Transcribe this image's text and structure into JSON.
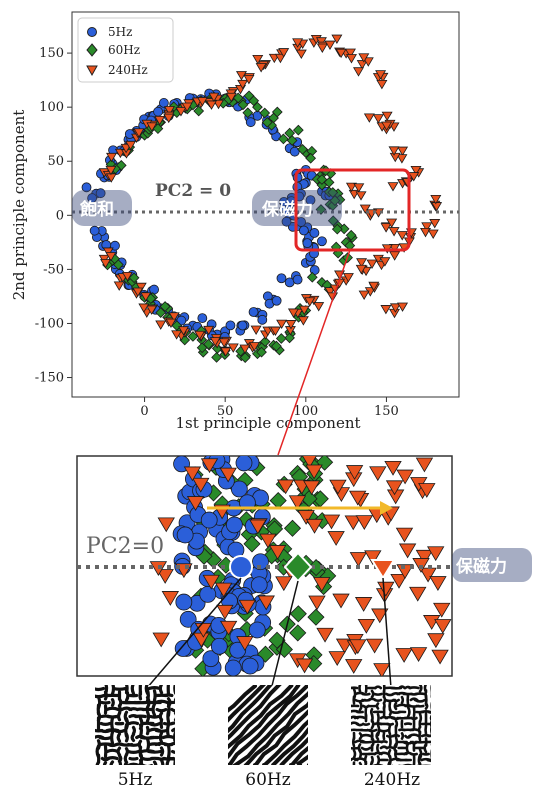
{
  "chart_data": {
    "type": "scatter",
    "xlabel": "1st principle component",
    "ylabel": "2nd principle component",
    "xlim": [
      -45,
      195
    ],
    "ylim": [
      -168,
      188
    ],
    "xticks": [
      0,
      50,
      100,
      150
    ],
    "yticks": [
      -150,
      -100,
      -50,
      0,
      50,
      100,
      150
    ],
    "legend_position": "top-left",
    "series": [
      {
        "name": "5Hz",
        "color": "#2b5fd9",
        "marker": "circle",
        "x": [
          -30,
          -25,
          -20,
          -15,
          -10,
          -5,
          0,
          5,
          10,
          20,
          30,
          40,
          50,
          60,
          70,
          80,
          90,
          100,
          110,
          -25,
          -20,
          -15,
          -10,
          -5,
          0,
          10,
          20,
          30,
          40,
          50,
          60,
          70,
          80,
          90,
          100,
          110,
          90,
          95,
          100,
          105,
          92,
          97,
          102
        ],
        "y": [
          20,
          35,
          48,
          60,
          70,
          78,
          86,
          92,
          98,
          104,
          108,
          110,
          108,
          102,
          92,
          78,
          62,
          42,
          22,
          -20,
          -34,
          -46,
          -58,
          -67,
          -75,
          -86,
          -95,
          -102,
          -106,
          -108,
          -102,
          -90,
          -78,
          -62,
          -44,
          -24,
          10,
          -10,
          30,
          -30,
          0,
          20,
          -20
        ]
      },
      {
        "name": "60Hz",
        "color": "#2a8a2a",
        "marker": "diamond",
        "x": [
          -20,
          -10,
          0,
          10,
          20,
          30,
          40,
          50,
          60,
          70,
          80,
          90,
          100,
          110,
          120,
          -20,
          -10,
          0,
          10,
          20,
          30,
          40,
          50,
          60,
          70,
          80,
          90,
          100,
          110,
          120,
          115,
          120,
          110,
          125
        ],
        "y": [
          42,
          60,
          74,
          86,
          95,
          102,
          106,
          108,
          106,
          100,
          90,
          76,
          58,
          38,
          20,
          -42,
          -60,
          -76,
          -90,
          -102,
          -112,
          -120,
          -125,
          -130,
          -128,
          -120,
          -108,
          -88,
          -62,
          -35,
          10,
          -10,
          28,
          -25
        ]
      },
      {
        "name": "240Hz",
        "color": "#e8531e",
        "marker": "triangle-down",
        "x": [
          -25,
          -15,
          -5,
          5,
          15,
          25,
          35,
          45,
          55,
          65,
          75,
          85,
          95,
          105,
          115,
          125,
          135,
          145,
          -25,
          -15,
          -5,
          5,
          15,
          25,
          35,
          45,
          55,
          65,
          75,
          85,
          95,
          105,
          115,
          125,
          135,
          145,
          155,
          165,
          175,
          150,
          160,
          170,
          140,
          180,
          130,
          140,
          150,
          160,
          145,
          155
        ],
        "y": [
          40,
          58,
          72,
          84,
          94,
          100,
          104,
          108,
          115,
          128,
          140,
          150,
          155,
          160,
          158,
          150,
          140,
          128,
          -40,
          -58,
          -72,
          -86,
          -98,
          -108,
          -112,
          -118,
          -122,
          -118,
          -110,
          -100,
          -90,
          -78,
          -70,
          -60,
          -50,
          -40,
          -30,
          -20,
          -10,
          80,
          60,
          40,
          -70,
          10,
          20,
          0,
          -10,
          30,
          90,
          -90
        ]
      }
    ]
  },
  "annotations": {
    "pc2_label": "PC2 = 0",
    "left_label": "飽和",
    "right_label": "保磁力",
    "zoom_pc2_label": "PC2=0",
    "zoom_right_label": "保磁力"
  },
  "zoom_markers": [
    {
      "series": "5Hz"
    },
    {
      "series": "60Hz"
    },
    {
      "series": "240Hz"
    }
  ],
  "bottom_images": [
    {
      "label": "5Hz"
    },
    {
      "label": "60Hz"
    },
    {
      "label": "240Hz"
    }
  ],
  "colors": {
    "blue": "#2b5fd9",
    "green": "#2a8a2a",
    "orange": "#e8531e",
    "highlight_box": "#e32626",
    "arrow": "#f2b92a",
    "dotted_line": "#666666"
  }
}
